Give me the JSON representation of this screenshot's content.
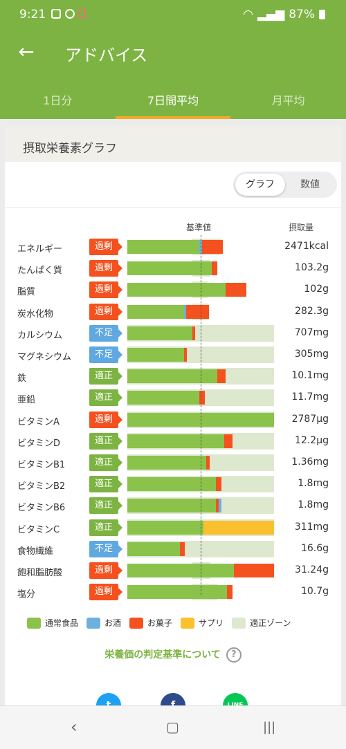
{
  "status": {
    "time": "9:21",
    "battery": "87%"
  },
  "header": {
    "title": "アドバイス",
    "back_icon": "arrow-left-icon"
  },
  "tabs": [
    {
      "label": "1日分"
    },
    {
      "label": "7日間平均"
    },
    {
      "label": "月平均"
    }
  ],
  "card": {
    "title": "摂取栄養素グラフ",
    "toggle": {
      "graph": "グラフ",
      "value": "数値"
    },
    "col_base": "基準値",
    "col_intake": "摂取量"
  },
  "colors": {
    "normal": "#8bc34a",
    "alcohol": "#6cb0e0",
    "snack": "#f4511e",
    "supplement": "#fbc02d",
    "zone": "#dde8cf",
    "accent": "#7cb342"
  },
  "nutrients": [
    {
      "name": "エネルギー",
      "status": "過剰",
      "type": "over",
      "value": "2471kcal"
    },
    {
      "name": "たんぱく質",
      "status": "過剰",
      "type": "over",
      "value": "103.2g"
    },
    {
      "name": "脂質",
      "status": "過剰",
      "type": "over",
      "value": "102g"
    },
    {
      "name": "炭水化物",
      "status": "過剰",
      "type": "over",
      "value": "282.3g"
    },
    {
      "name": "カルシウム",
      "status": "不足",
      "type": "under",
      "value": "707mg"
    },
    {
      "name": "マグネシウム",
      "status": "不足",
      "type": "under",
      "value": "305mg"
    },
    {
      "name": "鉄",
      "status": "適正",
      "type": "ok",
      "value": "10.1mg"
    },
    {
      "name": "亜鉛",
      "status": "適正",
      "type": "ok",
      "value": "11.7mg"
    },
    {
      "name": "ビタミンA",
      "status": "過剰",
      "type": "over",
      "value": "2787μg"
    },
    {
      "name": "ビタミンD",
      "status": "適正",
      "type": "ok",
      "value": "12.2μg"
    },
    {
      "name": "ビタミンB1",
      "status": "適正",
      "type": "ok",
      "value": "1.36mg"
    },
    {
      "name": "ビタミンB2",
      "status": "適正",
      "type": "ok",
      "value": "1.8mg"
    },
    {
      "name": "ビタミンB6",
      "status": "適正",
      "type": "ok",
      "value": "1.8mg"
    },
    {
      "name": "ビタミンC",
      "status": "適正",
      "type": "ok",
      "value": "311mg"
    },
    {
      "name": "食物繊維",
      "status": "不足",
      "type": "under",
      "value": "16.6g"
    },
    {
      "name": "飽和脂肪酸",
      "status": "過剰",
      "type": "over",
      "value": "31.24g"
    },
    {
      "name": "塩分",
      "status": "過剰",
      "type": "over",
      "value": "10.7g"
    }
  ],
  "legend": [
    {
      "label": "通常食品",
      "color": "#8bc34a"
    },
    {
      "label": "お酒",
      "color": "#6cb0e0"
    },
    {
      "label": "お菓子",
      "color": "#f4511e"
    },
    {
      "label": "サプリ",
      "color": "#fbc02d"
    },
    {
      "label": "適正ゾーン",
      "color": "#dde8cf"
    }
  ],
  "criteria_link": "栄養価の判定基準について",
  "share_icons": [
    "twitter-icon",
    "facebook-icon",
    "line-icon"
  ]
}
